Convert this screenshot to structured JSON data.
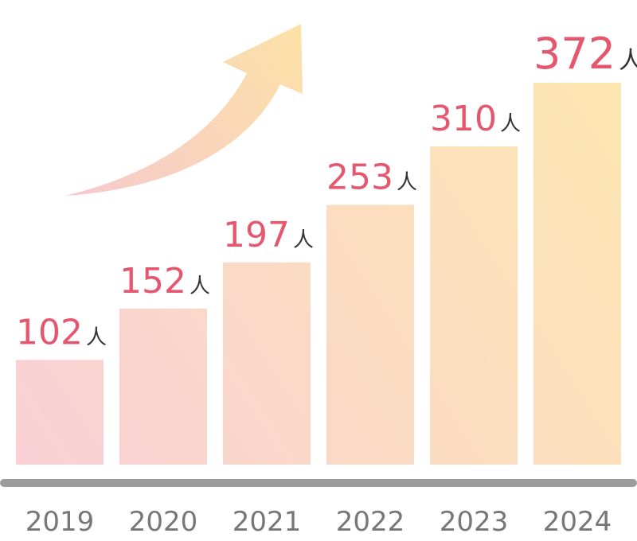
{
  "chart_data": {
    "type": "bar",
    "categories": [
      "2019",
      "2020",
      "2021",
      "2022",
      "2023",
      "2024"
    ],
    "values": [
      102,
      152,
      197,
      253,
      310,
      372
    ],
    "value_labels": [
      "102",
      "152",
      "197",
      "253",
      "310",
      "372"
    ],
    "unit": "人",
    "title": "",
    "xlabel": "",
    "ylabel": "",
    "ylim": [
      0,
      372
    ],
    "grid": false,
    "legend": "none",
    "trend_arrow": true,
    "colors": {
      "value_text": "#e4576f",
      "unit_text": "#333333",
      "tick_text": "#777777",
      "axis_line": "#9b9b9b",
      "bar_low": "#f8d0d6",
      "bar_high": "#fde7b0",
      "arrow_low": "#f6c8cf",
      "arrow_high": "#fce3a4"
    }
  }
}
